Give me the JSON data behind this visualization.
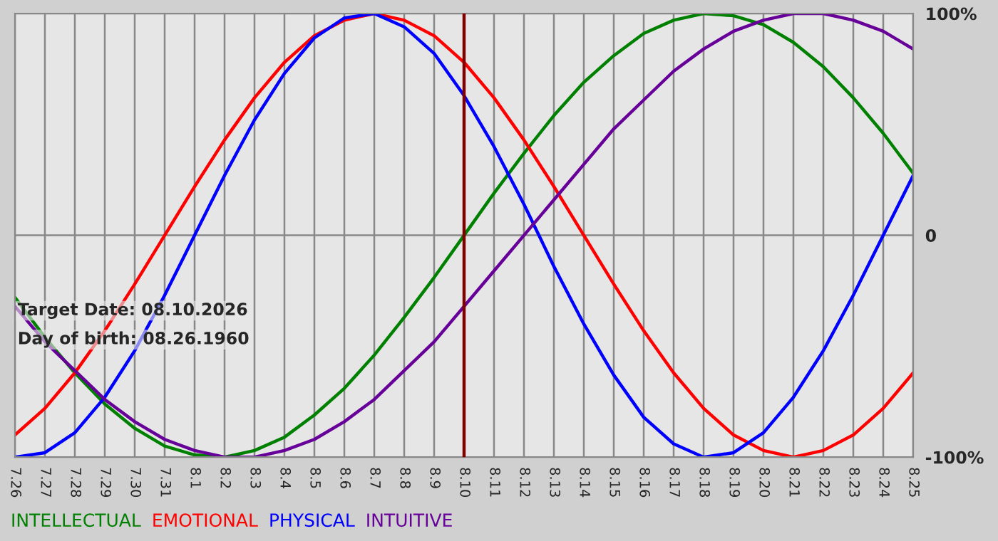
{
  "chart_data": {
    "type": "line",
    "categories": [
      "7.26",
      "7.27",
      "7.28",
      "7.29",
      "7.30",
      "7.31",
      "8.1",
      "8.2",
      "8.3",
      "8.4",
      "8.5",
      "8.6",
      "8.7",
      "8.8",
      "8.9",
      "8.10",
      "8.11",
      "8.12",
      "8.13",
      "8.14",
      "8.15",
      "8.16",
      "8.17",
      "8.18",
      "8.19",
      "8.20",
      "8.21",
      "8.22",
      "8.23",
      "8.24",
      "8.25"
    ],
    "series": [
      {
        "name": "INTELLECTUAL",
        "color": "#008000",
        "values": [
          -28,
          -46,
          -62,
          -76,
          -87,
          -95,
          -99,
          -100,
          -97,
          -91,
          -81,
          -69,
          -54,
          -37,
          -19,
          0,
          19,
          37,
          54,
          69,
          81,
          91,
          97,
          100,
          99,
          95,
          87,
          76,
          62,
          46,
          28
        ]
      },
      {
        "name": "EMOTIONAL",
        "color": "#ff0000",
        "values": [
          -90,
          -78,
          -62,
          -43,
          -22,
          0,
          22,
          43,
          62,
          78,
          90,
          97,
          100,
          97,
          90,
          78,
          62,
          43,
          22,
          0,
          -22,
          -43,
          -62,
          -78,
          -90,
          -97,
          -100,
          -97,
          -90,
          -78,
          -62
        ]
      },
      {
        "name": "PHYSICAL",
        "color": "#0000ff",
        "values": [
          -100,
          -98,
          -89,
          -73,
          -52,
          -27,
          0,
          27,
          52,
          73,
          89,
          98,
          100,
          94,
          82,
          63,
          40,
          14,
          -14,
          -40,
          -63,
          -82,
          -94,
          -100,
          -98,
          -89,
          -73,
          -52,
          -27,
          0,
          27
        ]
      },
      {
        "name": "INTUITIVE",
        "color": "#660099",
        "values": [
          -32,
          -48,
          -61,
          -74,
          -84,
          -92,
          -97,
          -100,
          -100,
          -97,
          -92,
          -84,
          -74,
          -61,
          -48,
          -32,
          -16,
          0,
          16,
          32,
          48,
          61,
          74,
          84,
          92,
          97,
          100,
          100,
          97,
          92,
          84
        ]
      }
    ],
    "ylim": [
      -100,
      100
    ],
    "yticks": [
      {
        "value": 100,
        "label": "100%"
      },
      {
        "value": 0,
        "label": "0"
      },
      {
        "value": -100,
        "label": "-100%"
      }
    ],
    "ref_lines": [
      {
        "axis": "x",
        "value": "8.10",
        "color": "#800000"
      }
    ],
    "annotations": [
      "Target Date: 08.10.2026",
      "Day of birth: 08.26.1960"
    ],
    "grid": true,
    "legend": "bottom",
    "marker": "none",
    "line_style": "solid"
  }
}
